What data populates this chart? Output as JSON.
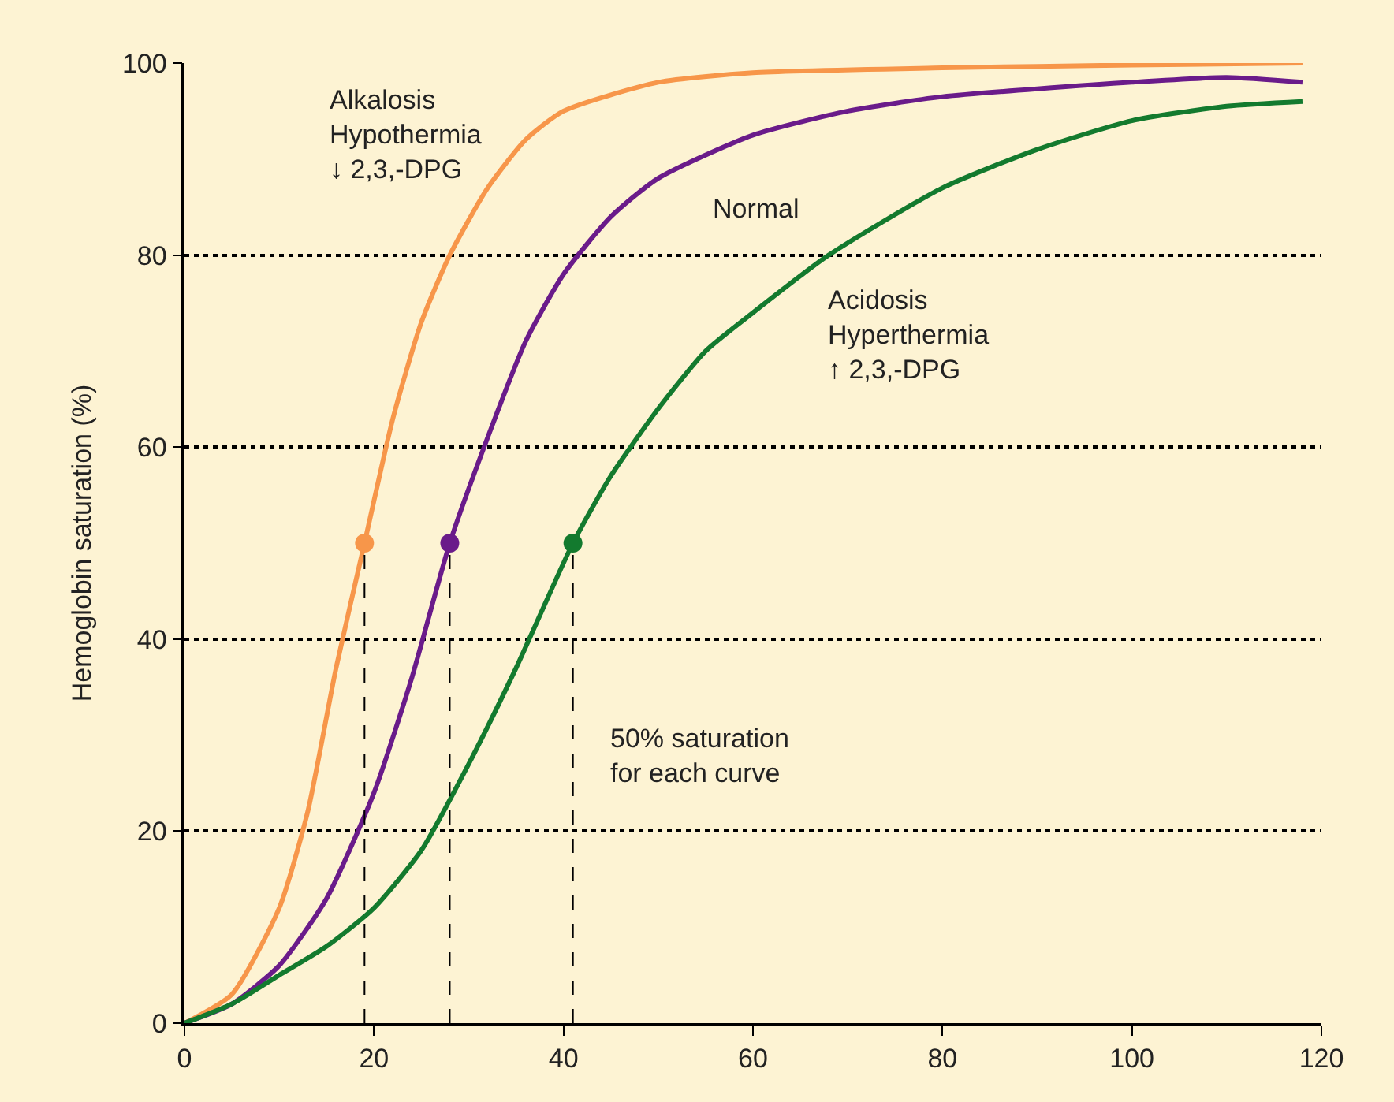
{
  "chart_data": {
    "type": "line",
    "ylabel": "Hemoglobin saturation (%)",
    "xlim": [
      0,
      120
    ],
    "ylim": [
      0,
      100
    ],
    "xticks": [
      0,
      20,
      40,
      60,
      80,
      100,
      120
    ],
    "yticks": [
      0,
      20,
      40,
      60,
      80,
      100
    ],
    "grid": "y",
    "marker": "none",
    "line_style": "solid",
    "series": [
      {
        "color": "#f7964a",
        "x": [
          0,
          5,
          10,
          13,
          16,
          19,
          22,
          25,
          28,
          32,
          36,
          40,
          50,
          60,
          80,
          100,
          118
        ],
        "values": [
          0,
          3,
          12,
          22,
          37,
          50,
          63,
          73,
          80,
          87,
          92,
          95,
          98,
          99,
          99.5,
          99.8,
          100
        ]
      },
      {
        "color": "#6a1b8a",
        "x": [
          0,
          5,
          10,
          15,
          20,
          24,
          28,
          32,
          36,
          40,
          45,
          50,
          60,
          70,
          80,
          100,
          110,
          118
        ],
        "values": [
          0,
          2,
          6,
          13,
          24,
          36,
          50,
          61,
          71,
          78,
          84,
          88,
          92.5,
          95,
          96.5,
          98,
          98.5,
          98
        ]
      },
      {
        "color": "#137a2e",
        "x": [
          0,
          5,
          10,
          15,
          20,
          25,
          30,
          35,
          41,
          45,
          50,
          55,
          60,
          68,
          80,
          90,
          100,
          110,
          118
        ],
        "values": [
          0,
          2,
          5,
          8,
          12,
          18,
          27,
          37,
          50,
          57,
          64,
          70,
          74,
          80,
          87,
          91,
          94,
          95.5,
          96
        ]
      },
      {
        "type": "line",
        "line_style": "dashed",
        "color": "#000000",
        "x": [
          19,
          19
        ],
        "values": [
          0,
          50
        ]
      },
      {
        "type": "line",
        "line_style": "dashed",
        "color": "#000000",
        "x": [
          28,
          28
        ],
        "values": [
          0,
          50
        ]
      },
      {
        "type": "line",
        "line_style": "dashed",
        "color": "#000000",
        "x": [
          41,
          41
        ],
        "values": [
          0,
          50
        ]
      },
      {
        "type": "scatter",
        "marker": "circle",
        "color": "#f7964a",
        "x": [
          19
        ],
        "values": [
          50
        ]
      },
      {
        "type": "scatter",
        "marker": "circle",
        "color": "#6a1b8a",
        "x": [
          28
        ],
        "values": [
          50
        ]
      },
      {
        "type": "scatter",
        "marker": "circle",
        "color": "#137a2e",
        "x": [
          41
        ],
        "values": [
          50
        ]
      }
    ],
    "annotations": [
      "Alkalosis\nHypothermia\n↓ 2,3,-DPG",
      "Normal",
      "Acidosis\nHyperthermia\n↑ 2,3,-DPG",
      "50% saturation\nfor each curve"
    ]
  }
}
